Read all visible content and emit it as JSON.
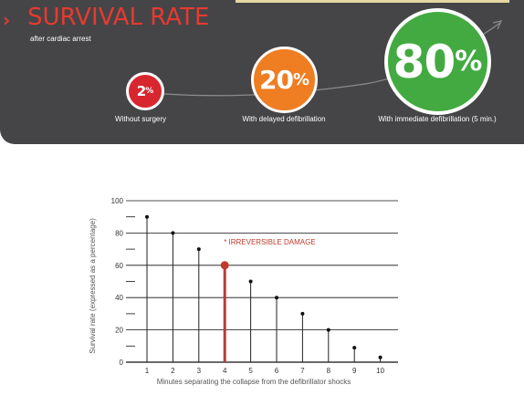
{
  "header": {
    "title": "SURVIVAL RATE",
    "subtitle": "after cardiac arrest"
  },
  "badges": [
    {
      "value": "2",
      "unit": "%",
      "label": "Without surgery",
      "color": "#d8262e"
    },
    {
      "value": "20",
      "unit": "%",
      "label": "With delayed defibrillation",
      "color": "#ef7d22"
    },
    {
      "value": "80",
      "unit": "%",
      "label": "With immediate defibrillation (5 min.)",
      "color": "#43aa41"
    }
  ],
  "colors": {
    "panel": "#454547",
    "accent_red": "#e63a30",
    "highlight_stem": "#b83a3a",
    "stem": "#222222"
  },
  "chart_data": {
    "type": "scatter",
    "xlabel": "Minutes separating the collapse from the defibrillator shocks",
    "ylabel": "Survival rate (expressed as a percentage)",
    "x": [
      1,
      2,
      3,
      4,
      5,
      6,
      7,
      8,
      9,
      10
    ],
    "y": [
      90,
      80,
      70,
      60,
      50,
      40,
      30,
      20,
      9,
      3
    ],
    "ylim": [
      0,
      100
    ],
    "yticks": [
      0,
      20,
      40,
      60,
      80,
      100
    ],
    "xticks": [
      "1",
      "2",
      "3",
      "4",
      "5",
      "6",
      "7",
      "8",
      "9",
      "10"
    ],
    "highlight_x": 4,
    "annotation": "* IRREVERSIBLE DAMAGE",
    "grid": true
  }
}
